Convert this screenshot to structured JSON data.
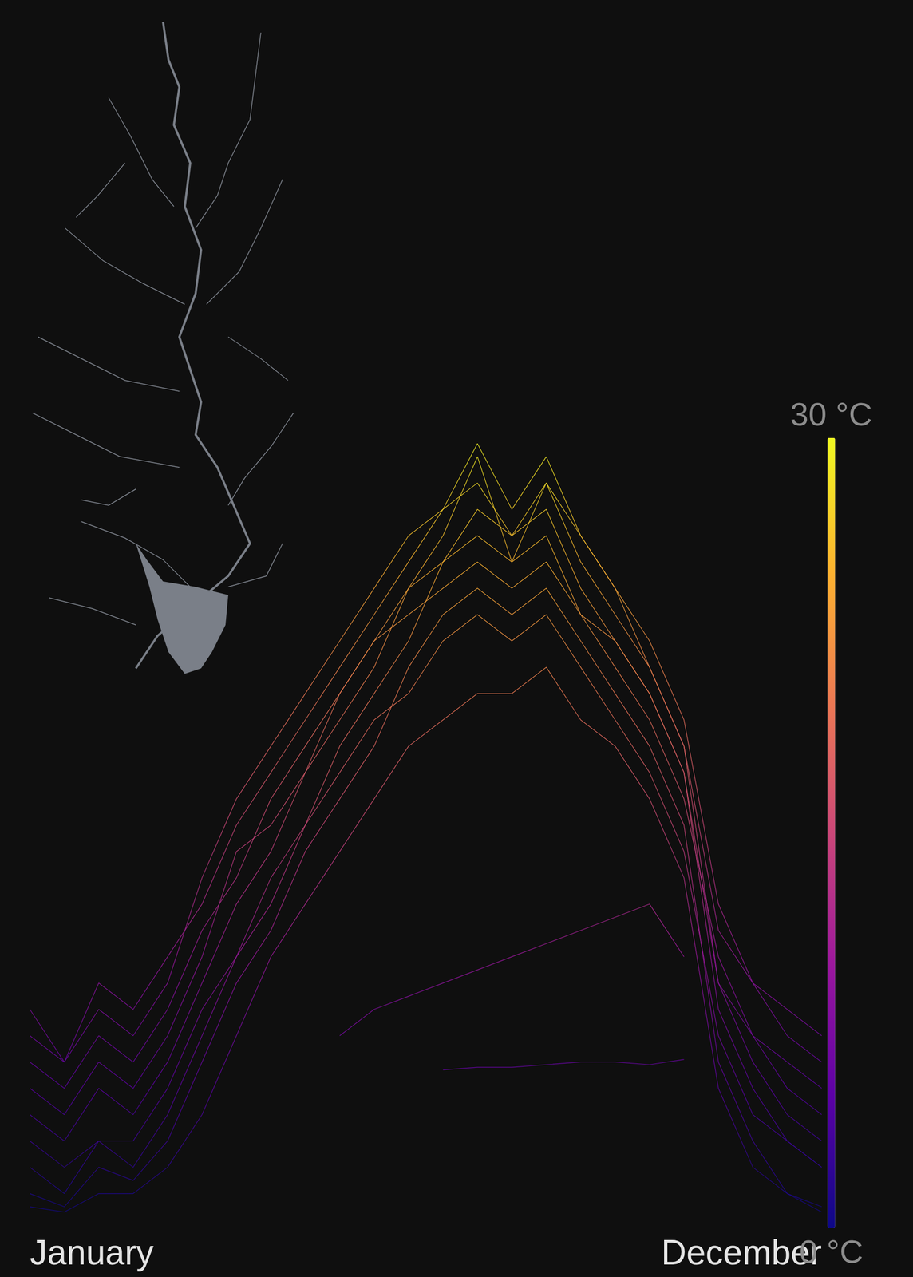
{
  "chart_data": {
    "type": "line",
    "categories": [
      "January",
      null,
      null,
      null,
      null,
      null,
      null,
      null,
      null,
      null,
      null,
      null,
      null,
      null,
      null,
      null,
      null,
      null,
      null,
      null,
      null,
      null,
      null,
      "December"
    ],
    "series": [
      {
        "values": [
          4,
          3,
          5,
          4,
          6,
          9,
          12,
          14,
          17,
          19,
          21,
          24,
          26,
          29,
          25,
          28,
          26,
          24,
          21,
          18,
          9,
          6,
          4,
          3
        ]
      },
      {
        "values": [
          2,
          1,
          3,
          2,
          4,
          7,
          10,
          13,
          15,
          18,
          20,
          22,
          25,
          27,
          26,
          27,
          24,
          22,
          20,
          17,
          8,
          5,
          3,
          2
        ]
      },
      {
        "values": [
          6,
          5,
          7,
          6,
          8,
          11,
          13,
          16,
          18,
          20,
          22,
          24,
          25,
          26,
          25,
          26,
          23,
          21,
          19,
          16,
          10,
          7,
          6,
          5
        ]
      },
      {
        "values": [
          1,
          0.5,
          2,
          1.5,
          3,
          6,
          9,
          11,
          14,
          16,
          18,
          21,
          23,
          24,
          23,
          24,
          22,
          20,
          18,
          15,
          6,
          3,
          1,
          0.5
        ]
      },
      {
        "values": [
          8,
          6,
          9,
          8,
          10,
          12,
          15,
          17,
          19,
          21,
          23,
          25,
          27,
          28,
          26,
          28,
          25,
          23,
          21,
          18,
          11,
          9,
          7,
          6
        ]
      },
      {
        "values": [
          3,
          2,
          3,
          3,
          5,
          8,
          10,
          12,
          15,
          17,
          19,
          20,
          22,
          23,
          22,
          23,
          21,
          19,
          17,
          14,
          7,
          4,
          3,
          2
        ]
      },
      {
        "values": [
          5,
          4,
          6,
          5,
          7,
          10,
          14,
          15,
          17,
          20,
          22,
          23,
          24,
          25,
          24,
          25,
          23,
          22,
          20,
          17,
          9,
          7,
          5,
          4
        ]
      },
      {
        "values": [
          0.5,
          0.3,
          1,
          1,
          2,
          4,
          7,
          10,
          12,
          14,
          16,
          18,
          19,
          20,
          20,
          21,
          19,
          18,
          16,
          13,
          5,
          2,
          1,
          0.3
        ]
      },
      {
        "values": [
          7,
          6,
          8,
          7,
          9,
          13,
          16,
          18,
          20,
          22,
          24,
          26,
          27,
          29.5,
          27,
          29,
          26,
          24,
          22,
          19,
          12,
          9,
          8,
          7
        ]
      },
      {
        "values": [
          null,
          null,
          null,
          null,
          null,
          null,
          null,
          null,
          null,
          7,
          8,
          8.5,
          9,
          9.5,
          10,
          10.5,
          11,
          11.5,
          12,
          10,
          null,
          null,
          null,
          null
        ]
      },
      {
        "values": [
          null,
          null,
          null,
          null,
          null,
          null,
          null,
          null,
          null,
          null,
          null,
          null,
          5.7,
          5.8,
          5.8,
          5.9,
          6.0,
          6.0,
          5.9,
          6.1,
          null,
          null,
          null,
          null
        ]
      }
    ],
    "ylim": [
      0,
      30
    ],
    "grid": false,
    "tick_labels": "x",
    "colorbar": {
      "range": [
        0,
        30
      ],
      "ticks": [
        {
          "value": 0,
          "label": "0 °C"
        },
        {
          "value": 30,
          "label": "30 °C"
        }
      ]
    }
  }
}
